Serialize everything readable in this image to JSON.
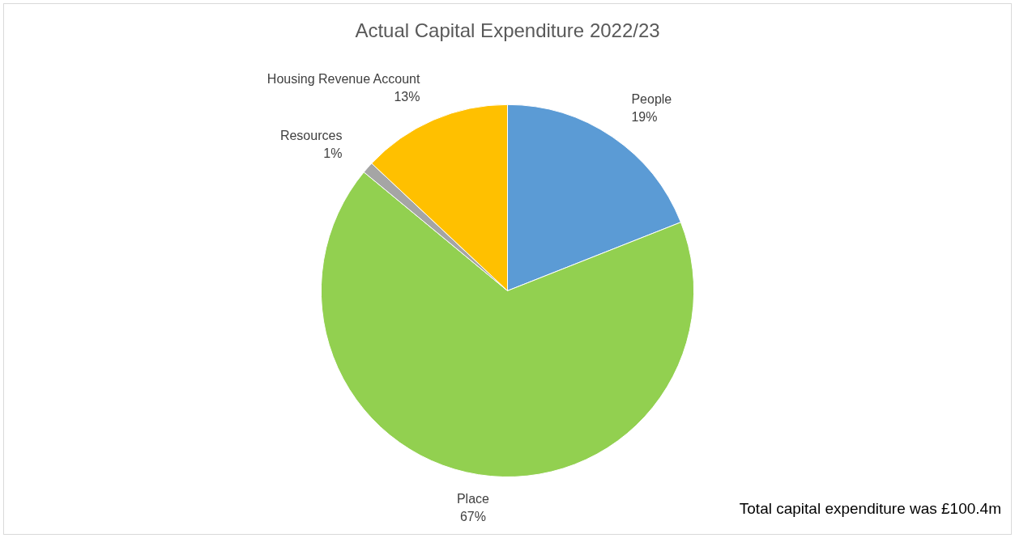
{
  "chart_data": {
    "type": "pie",
    "title": "Actual Capital Expenditure 2022/23",
    "categories": [
      "People",
      "Place",
      "Resources",
      "Housing Revenue Account"
    ],
    "values": [
      19,
      67,
      1,
      13
    ],
    "colors": [
      "#5b9bd5",
      "#92d050",
      "#a5a5a5",
      "#ffc000"
    ],
    "value_labels": [
      "19%",
      "67%",
      "1%",
      "13%"
    ],
    "legend": false,
    "annotations": [
      "Total capital expenditure was £100.4m"
    ]
  }
}
